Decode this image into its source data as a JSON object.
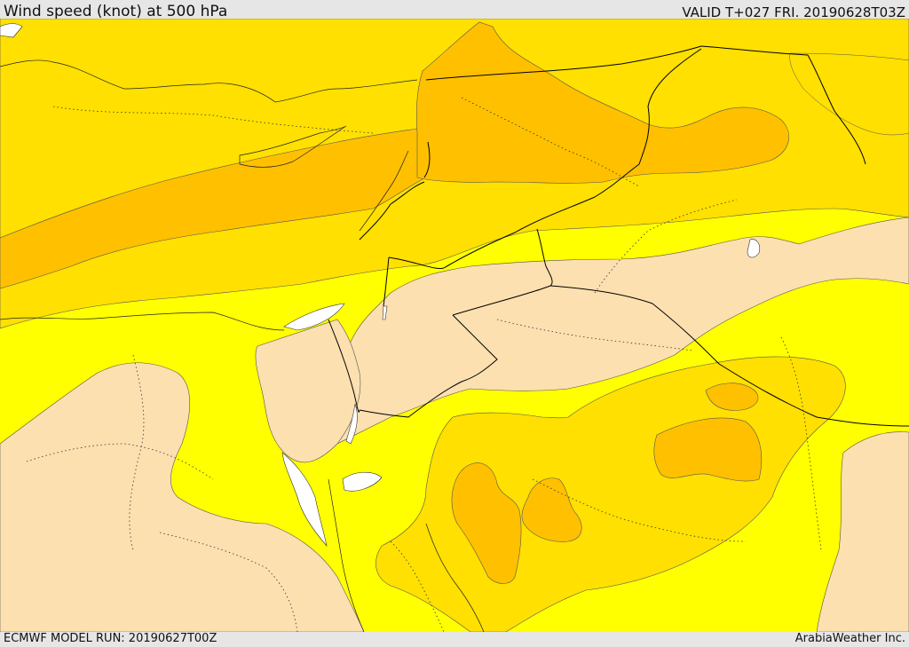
{
  "header": {
    "title": "Wind speed (knot) at 500 hPa",
    "valid_time": "VALID T+027 FRI. 20190628T03Z"
  },
  "footer": {
    "model_run": "ECMWF MODEL RUN: 20190627T00Z",
    "credit": "ArabiaWeather Inc."
  },
  "map": {
    "variable": "wind speed at 500 hPa",
    "colors": {
      "wind_band_1_lightest": "#fde0b0",
      "wind_band_2": "#ffff00",
      "wind_band_3": "#ffe000",
      "wind_band_4_strongest": "#ffc000",
      "water_white": "#ffffff",
      "borders": "#000000"
    }
  }
}
